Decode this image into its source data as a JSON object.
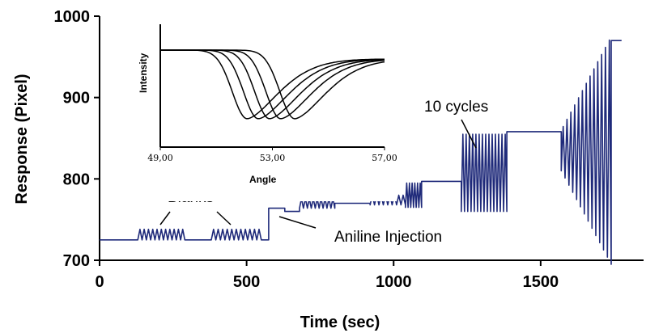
{
  "chart_data": [
    {
      "type": "line",
      "title": "",
      "xlabel": "Time (sec)",
      "ylabel": "Response (Pixel)",
      "xlim": [
        0,
        1850
      ],
      "ylim": [
        700,
        1000
      ],
      "xticks": [
        0,
        500,
        1000,
        1500
      ],
      "xtick_labels": [
        "0",
        "500",
        "1000",
        "1500"
      ],
      "yticks": [
        700,
        800,
        900,
        1000
      ],
      "ytick_labels": [
        "700",
        "800",
        "900",
        "1000"
      ],
      "grid": false,
      "series_color": "#1f2a7a",
      "segments": [
        {
          "kind": "flat",
          "x0": 0,
          "x1": 130,
          "y": 725
        },
        {
          "kind": "osc",
          "x0": 130,
          "x1": 290,
          "lo": 725,
          "hi": 738,
          "n": 22
        },
        {
          "kind": "flat",
          "x0": 290,
          "x1": 380,
          "y": 725
        },
        {
          "kind": "osc",
          "x0": 380,
          "x1": 550,
          "lo": 725,
          "hi": 738,
          "n": 22
        },
        {
          "kind": "flat",
          "x0": 550,
          "x1": 570,
          "y": 725
        },
        {
          "kind": "step",
          "x": 575,
          "from": 725,
          "to": 764
        },
        {
          "kind": "flat",
          "x0": 575,
          "x1": 630,
          "y": 764
        },
        {
          "kind": "flat",
          "x0": 630,
          "x1": 680,
          "y": 760
        },
        {
          "kind": "osc",
          "x0": 680,
          "x1": 800,
          "lo": 764,
          "hi": 776,
          "n": 18
        },
        {
          "kind": "flat",
          "x0": 800,
          "x1": 920,
          "y": 770
        },
        {
          "kind": "osc",
          "x0": 920,
          "x1": 1040,
          "lo": 768,
          "hi": 780,
          "n": 16
        },
        {
          "kind": "osc",
          "x0": 1040,
          "x1": 1095,
          "lo": 765,
          "hi": 795,
          "n": 12
        },
        {
          "kind": "flat",
          "x0": 1095,
          "x1": 1230,
          "y": 797
        },
        {
          "kind": "osc",
          "x0": 1230,
          "x1": 1385,
          "lo": 760,
          "hi": 855,
          "n": 28
        },
        {
          "kind": "flat",
          "x0": 1385,
          "x1": 1570,
          "y": 858
        },
        {
          "kind": "grow",
          "x0": 1570,
          "x1": 1740,
          "mid": 835,
          "amp0": 25,
          "amp1": 140,
          "n": 26
        },
        {
          "kind": "flat",
          "x0": 1740,
          "x1": 1775,
          "y": 970
        }
      ]
    },
    {
      "type": "line",
      "title": "",
      "xlabel": "Angle",
      "ylabel": "Intensity",
      "xlim": [
        49,
        57
      ],
      "xticks": [
        49,
        53,
        57
      ],
      "xtick_labels": [
        "49,00",
        "53,00",
        "57,00"
      ],
      "series": [
        {
          "min_x": 52.1
        },
        {
          "min_x": 52.5
        },
        {
          "min_x": 52.9
        },
        {
          "min_x": 53.3
        },
        {
          "min_x": 53.8
        }
      ]
    }
  ],
  "annotations": {
    "blanks": "Blanks",
    "aniline": "Aniline Injection",
    "cycles": "10 cycles"
  }
}
